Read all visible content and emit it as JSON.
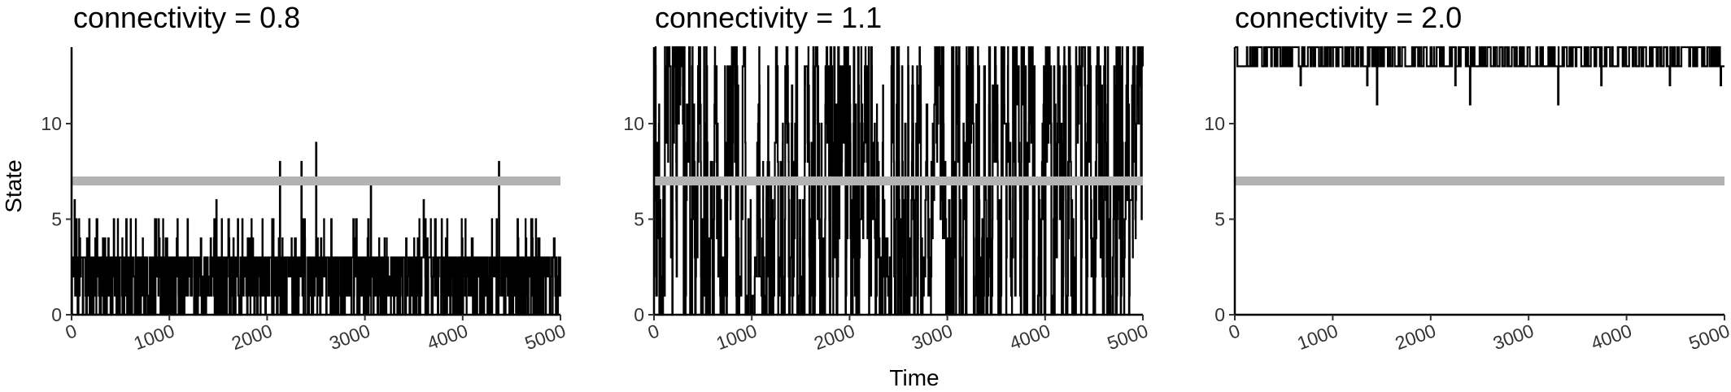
{
  "figure": {
    "xlabel": "Time",
    "ylabel": "State"
  },
  "chart_data": [
    {
      "type": "line",
      "title": "connectivity = 0.8",
      "xlim": [
        0,
        5000
      ],
      "ylim": [
        0,
        14
      ],
      "x_ticks": [
        "0",
        "1000",
        "2000",
        "3000",
        "4000",
        "5000"
      ],
      "y_ticks": [
        "0",
        "5",
        "10"
      ],
      "reference_line": {
        "y": 7,
        "color": "#b3b3b3"
      },
      "series": [
        {
          "color": "#000000",
          "n_points": 5001,
          "x_range": [
            0,
            5000
          ],
          "typical_range": [
            0,
            3
          ],
          "min": 0,
          "max": 9,
          "peaks": [
            {
              "x": 30,
              "y": 6
            },
            {
              "x": 180,
              "y": 5
            },
            {
              "x": 260,
              "y": 5
            },
            {
              "x": 560,
              "y": 5
            },
            {
              "x": 1480,
              "y": 6
            },
            {
              "x": 1700,
              "y": 5
            },
            {
              "x": 2130,
              "y": 8
            },
            {
              "x": 2350,
              "y": 8
            },
            {
              "x": 2500,
              "y": 9
            },
            {
              "x": 3060,
              "y": 7
            },
            {
              "x": 3600,
              "y": 6
            },
            {
              "x": 4370,
              "y": 8
            },
            {
              "x": 4700,
              "y": 5
            }
          ]
        }
      ]
    },
    {
      "type": "line",
      "title": "connectivity = 1.1",
      "xlim": [
        0,
        5000
      ],
      "ylim": [
        0,
        14
      ],
      "x_ticks": [
        "0",
        "1000",
        "2000",
        "3000",
        "4000",
        "5000"
      ],
      "y_ticks": [
        "0",
        "5",
        "10"
      ],
      "reference_line": {
        "y": 7,
        "color": "#b3b3b3"
      },
      "series": [
        {
          "color": "#000000",
          "n_points": 5001,
          "x_range": [
            0,
            5000
          ],
          "typical_range": [
            0,
            13
          ],
          "min": 0,
          "max": 14
        }
      ]
    },
    {
      "type": "line",
      "title": "connectivity = 2.0",
      "xlim": [
        0,
        5000
      ],
      "ylim": [
        0,
        14
      ],
      "x_ticks": [
        "0",
        "1000",
        "2000",
        "3000",
        "4000",
        "5000"
      ],
      "y_ticks": [
        "0",
        "5",
        "10"
      ],
      "reference_line": {
        "y": 7,
        "color": "#b3b3b3"
      },
      "series": [
        {
          "color": "#000000",
          "n_points": 5001,
          "x_range": [
            0,
            5000
          ],
          "typical_range": [
            13,
            14
          ],
          "min": 11,
          "max": 14,
          "dips": [
            {
              "x": 1450,
              "y": 11
            },
            {
              "x": 2400,
              "y": 11
            },
            {
              "x": 3300,
              "y": 11
            },
            {
              "x": 670,
              "y": 12
            },
            {
              "x": 1350,
              "y": 12
            },
            {
              "x": 2250,
              "y": 12
            },
            {
              "x": 3740,
              "y": 12
            },
            {
              "x": 4440,
              "y": 12
            },
            {
              "x": 4960,
              "y": 12
            }
          ]
        }
      ]
    }
  ]
}
